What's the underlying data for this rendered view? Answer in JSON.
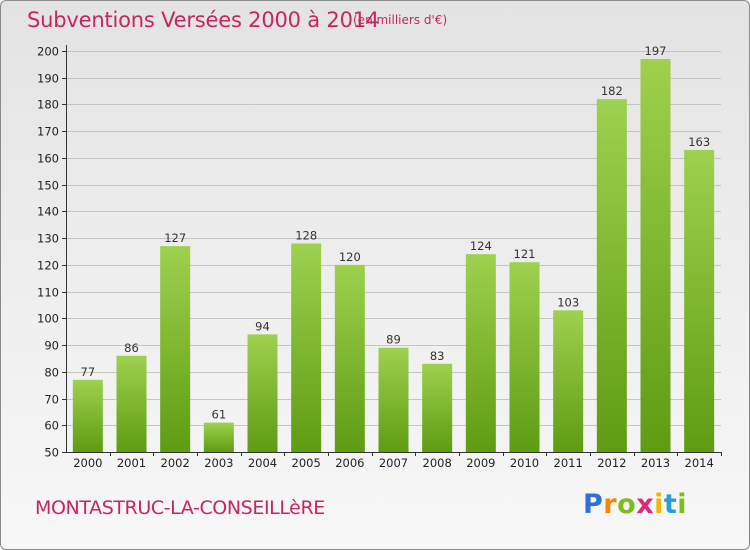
{
  "title": "Subventions Versées 2000 à 2014",
  "subtitle": "(en milliers d'€)",
  "place_name": "MONTASTRUC-LA-CONSEILLèRE",
  "logo": {
    "text": "Proxiti",
    "letters": [
      "P",
      "r",
      "o",
      "x",
      "i",
      "t",
      "i"
    ],
    "letter_colors": [
      "#2f6fd6",
      "#f08a00",
      "#7bbd1a",
      "#e0287a",
      "#f0b800",
      "#2f9bd6",
      "#7bbd1a"
    ]
  },
  "colors": {
    "text_accent": "#c7265a",
    "bar_top": "#9ed14e",
    "bar_bottom": "#5e9c12",
    "grid": "#c4c4c4",
    "axis": "#333333"
  },
  "chart_data": {
    "type": "bar",
    "categories": [
      "2000",
      "2001",
      "2002",
      "2003",
      "2004",
      "2005",
      "2006",
      "2007",
      "2008",
      "2009",
      "2010",
      "2011",
      "2012",
      "2013",
      "2014"
    ],
    "values": [
      77,
      86,
      127,
      61,
      94,
      128,
      120,
      89,
      83,
      124,
      121,
      103,
      182,
      197,
      163
    ],
    "data_labels": [
      "77",
      "86",
      "127",
      "61",
      "94",
      "128",
      "120",
      "89",
      "83",
      "124",
      "121",
      "103",
      "182",
      "197",
      "163"
    ],
    "y_ticks": [
      50,
      60,
      70,
      80,
      90,
      100,
      110,
      120,
      130,
      140,
      150,
      160,
      170,
      180,
      190,
      200
    ],
    "ylim": [
      50,
      200
    ],
    "grid": true,
    "xlabel": "",
    "ylabel": ""
  }
}
